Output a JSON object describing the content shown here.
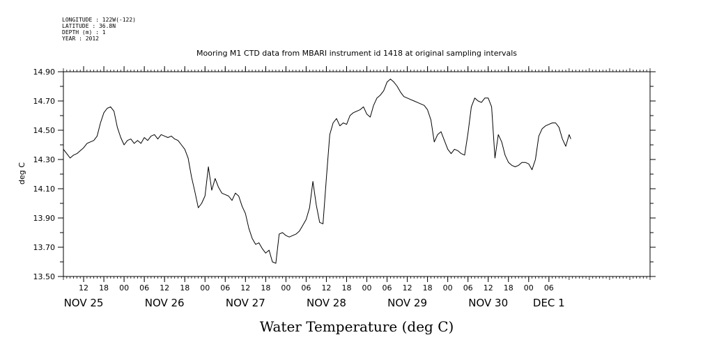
{
  "header": {
    "meta_lines": [
      "LONGITUDE : 122W(-122)",
      "LATITUDE : 36.8N",
      "DEPTH (m) : 1",
      "YEAR : 2012"
    ],
    "title": "Mooring M1 CTD data from MBARI instrument id 1418 at original sampling intervals"
  },
  "chart_data": {
    "type": "line",
    "title": "Mooring M1 CTD data from MBARI instrument id 1418 at original sampling intervals",
    "xlabel": "Water Temperature (deg C)",
    "ylabel": "deg C",
    "ylim": [
      13.5,
      14.9
    ],
    "xlim": [
      "2012-11-24 06:00",
      "2012-12-01 12:00"
    ],
    "y_ticks": [
      "13.50",
      "13.70",
      "13.90",
      "14.10",
      "14.30",
      "14.50",
      "14.70",
      "14.90"
    ],
    "x_hour_ticks": [
      {
        "t": "2012-11-24 12:00",
        "label": "12"
      },
      {
        "t": "2012-11-24 18:00",
        "label": "18"
      },
      {
        "t": "2012-11-25 00:00",
        "label": "00"
      },
      {
        "t": "2012-11-25 06:00",
        "label": "06"
      },
      {
        "t": "2012-11-25 12:00",
        "label": "12"
      },
      {
        "t": "2012-11-25 18:00",
        "label": "18"
      },
      {
        "t": "2012-11-26 00:00",
        "label": "00"
      },
      {
        "t": "2012-11-26 06:00",
        "label": "06"
      },
      {
        "t": "2012-11-26 12:00",
        "label": "12"
      },
      {
        "t": "2012-11-26 18:00",
        "label": "18"
      },
      {
        "t": "2012-11-27 00:00",
        "label": "00"
      },
      {
        "t": "2012-11-27 06:00",
        "label": "06"
      },
      {
        "t": "2012-11-27 12:00",
        "label": "12"
      },
      {
        "t": "2012-11-27 18:00",
        "label": "18"
      },
      {
        "t": "2012-11-28 00:00",
        "label": "00"
      },
      {
        "t": "2012-11-28 06:00",
        "label": "06"
      },
      {
        "t": "2012-11-28 12:00",
        "label": "12"
      },
      {
        "t": "2012-11-28 18:00",
        "label": "18"
      },
      {
        "t": "2012-11-29 00:00",
        "label": "00"
      },
      {
        "t": "2012-11-29 06:00",
        "label": "06"
      },
      {
        "t": "2012-11-29 12:00",
        "label": "12"
      },
      {
        "t": "2012-11-29 18:00",
        "label": "18"
      },
      {
        "t": "2012-11-30 00:00",
        "label": "00"
      },
      {
        "t": "2012-11-30 06:00",
        "label": "06"
      }
    ],
    "x_day_labels": [
      {
        "t": "2012-11-24 12:00",
        "label": "NOV 25"
      },
      {
        "t": "2012-11-25 12:00",
        "label": "NOV 26"
      },
      {
        "t": "2012-11-26 12:00",
        "label": "NOV 27"
      },
      {
        "t": "2012-11-27 12:00",
        "label": "NOV 28"
      },
      {
        "t": "2012-11-28 12:00",
        "label": "NOV 29"
      },
      {
        "t": "2012-11-29 12:00",
        "label": "NOV 30"
      },
      {
        "t": "2012-11-30 06:00",
        "label": "DEC  1"
      }
    ],
    "series": [
      {
        "color": "#000000",
        "points": [
          [
            "2012-11-24 06:00",
            14.37
          ],
          [
            "2012-11-24 07:00",
            14.34
          ],
          [
            "2012-11-24 08:00",
            14.31
          ],
          [
            "2012-11-24 09:00",
            14.33
          ],
          [
            "2012-11-24 10:00",
            14.34
          ],
          [
            "2012-11-24 11:00",
            14.36
          ],
          [
            "2012-11-24 12:00",
            14.38
          ],
          [
            "2012-11-24 13:00",
            14.41
          ],
          [
            "2012-11-24 14:00",
            14.42
          ],
          [
            "2012-11-24 15:00",
            14.43
          ],
          [
            "2012-11-24 16:00",
            14.46
          ],
          [
            "2012-11-24 17:00",
            14.55
          ],
          [
            "2012-11-24 18:00",
            14.62
          ],
          [
            "2012-11-24 19:00",
            14.65
          ],
          [
            "2012-11-24 20:00",
            14.66
          ],
          [
            "2012-11-24 21:00",
            14.63
          ],
          [
            "2012-11-24 22:00",
            14.52
          ],
          [
            "2012-11-24 23:00",
            14.45
          ],
          [
            "2012-11-25 00:00",
            14.4
          ],
          [
            "2012-11-25 01:00",
            14.43
          ],
          [
            "2012-11-25 02:00",
            14.44
          ],
          [
            "2012-11-25 03:00",
            14.41
          ],
          [
            "2012-11-25 04:00",
            14.43
          ],
          [
            "2012-11-25 05:00",
            14.41
          ],
          [
            "2012-11-25 06:00",
            14.45
          ],
          [
            "2012-11-25 07:00",
            14.43
          ],
          [
            "2012-11-25 08:00",
            14.46
          ],
          [
            "2012-11-25 09:00",
            14.47
          ],
          [
            "2012-11-25 10:00",
            14.44
          ],
          [
            "2012-11-25 11:00",
            14.47
          ],
          [
            "2012-11-25 12:00",
            14.46
          ],
          [
            "2012-11-25 13:00",
            14.45
          ],
          [
            "2012-11-25 14:00",
            14.46
          ],
          [
            "2012-11-25 15:00",
            14.44
          ],
          [
            "2012-11-25 16:00",
            14.43
          ],
          [
            "2012-11-25 17:00",
            14.4
          ],
          [
            "2012-11-25 18:00",
            14.37
          ],
          [
            "2012-11-25 19:00",
            14.31
          ],
          [
            "2012-11-25 20:00",
            14.18
          ],
          [
            "2012-11-25 21:00",
            14.08
          ],
          [
            "2012-11-25 22:00",
            13.97
          ],
          [
            "2012-11-25 23:00",
            14.0
          ],
          [
            "2012-11-26 00:00",
            14.05
          ],
          [
            "2012-11-26 01:00",
            14.25
          ],
          [
            "2012-11-26 02:00",
            14.09
          ],
          [
            "2012-11-26 03:00",
            14.17
          ],
          [
            "2012-11-26 04:00",
            14.11
          ],
          [
            "2012-11-26 05:00",
            14.07
          ],
          [
            "2012-11-26 06:00",
            14.06
          ],
          [
            "2012-11-26 07:00",
            14.05
          ],
          [
            "2012-11-26 08:00",
            14.02
          ],
          [
            "2012-11-26 09:00",
            14.07
          ],
          [
            "2012-11-26 10:00",
            14.05
          ],
          [
            "2012-11-26 11:00",
            13.98
          ],
          [
            "2012-11-26 12:00",
            13.93
          ],
          [
            "2012-11-26 13:00",
            13.83
          ],
          [
            "2012-11-26 14:00",
            13.76
          ],
          [
            "2012-11-26 15:00",
            13.72
          ],
          [
            "2012-11-26 16:00",
            13.73
          ],
          [
            "2012-11-26 17:00",
            13.69
          ],
          [
            "2012-11-26 18:00",
            13.66
          ],
          [
            "2012-11-26 19:00",
            13.68
          ],
          [
            "2012-11-26 20:00",
            13.6
          ],
          [
            "2012-11-26 21:00",
            13.59
          ],
          [
            "2012-11-26 22:00",
            13.79
          ],
          [
            "2012-11-26 23:00",
            13.8
          ],
          [
            "2012-11-27 00:00",
            13.78
          ],
          [
            "2012-11-27 01:00",
            13.77
          ],
          [
            "2012-11-27 02:00",
            13.78
          ],
          [
            "2012-11-27 03:00",
            13.79
          ],
          [
            "2012-11-27 04:00",
            13.81
          ],
          [
            "2012-11-27 05:00",
            13.85
          ],
          [
            "2012-11-27 06:00",
            13.89
          ],
          [
            "2012-11-27 07:00",
            13.97
          ],
          [
            "2012-11-27 08:00",
            14.15
          ],
          [
            "2012-11-27 09:00",
            13.99
          ],
          [
            "2012-11-27 10:00",
            13.87
          ],
          [
            "2012-11-27 11:00",
            13.86
          ],
          [
            "2012-11-27 12:00",
            14.17
          ],
          [
            "2012-11-27 13:00",
            14.47
          ],
          [
            "2012-11-27 14:00",
            14.55
          ],
          [
            "2012-11-27 15:00",
            14.58
          ],
          [
            "2012-11-27 16:00",
            14.53
          ],
          [
            "2012-11-27 17:00",
            14.55
          ],
          [
            "2012-11-27 18:00",
            14.54
          ],
          [
            "2012-11-27 19:00",
            14.6
          ],
          [
            "2012-11-27 20:00",
            14.62
          ],
          [
            "2012-11-27 21:00",
            14.63
          ],
          [
            "2012-11-27 22:00",
            14.64
          ],
          [
            "2012-11-27 23:00",
            14.66
          ],
          [
            "2012-11-28 00:00",
            14.61
          ],
          [
            "2012-11-28 01:00",
            14.59
          ],
          [
            "2012-11-28 02:00",
            14.67
          ],
          [
            "2012-11-28 03:00",
            14.72
          ],
          [
            "2012-11-28 04:00",
            14.74
          ],
          [
            "2012-11-28 05:00",
            14.77
          ],
          [
            "2012-11-28 06:00",
            14.83
          ],
          [
            "2012-11-28 07:00",
            14.85
          ],
          [
            "2012-11-28 08:00",
            14.83
          ],
          [
            "2012-11-28 09:00",
            14.8
          ],
          [
            "2012-11-28 10:00",
            14.76
          ],
          [
            "2012-11-28 11:00",
            14.73
          ],
          [
            "2012-11-28 12:00",
            14.72
          ],
          [
            "2012-11-28 13:00",
            14.71
          ],
          [
            "2012-11-28 14:00",
            14.7
          ],
          [
            "2012-11-28 15:00",
            14.69
          ],
          [
            "2012-11-28 16:00",
            14.68
          ],
          [
            "2012-11-28 17:00",
            14.67
          ],
          [
            "2012-11-28 18:00",
            14.64
          ],
          [
            "2012-11-28 19:00",
            14.57
          ],
          [
            "2012-11-28 20:00",
            14.42
          ],
          [
            "2012-11-28 21:00",
            14.47
          ],
          [
            "2012-11-28 22:00",
            14.49
          ],
          [
            "2012-11-28 23:00",
            14.43
          ],
          [
            "2012-11-29 00:00",
            14.37
          ],
          [
            "2012-11-29 01:00",
            14.34
          ],
          [
            "2012-11-29 02:00",
            14.37
          ],
          [
            "2012-11-29 03:00",
            14.36
          ],
          [
            "2012-11-29 04:00",
            14.34
          ],
          [
            "2012-11-29 05:00",
            14.33
          ],
          [
            "2012-11-29 06:00",
            14.48
          ],
          [
            "2012-11-29 07:00",
            14.66
          ],
          [
            "2012-11-29 08:00",
            14.72
          ],
          [
            "2012-11-29 09:00",
            14.7
          ],
          [
            "2012-11-29 10:00",
            14.69
          ],
          [
            "2012-11-29 11:00",
            14.72
          ],
          [
            "2012-11-29 12:00",
            14.72
          ],
          [
            "2012-11-29 13:00",
            14.66
          ],
          [
            "2012-11-29 14:00",
            14.31
          ],
          [
            "2012-11-29 15:00",
            14.47
          ],
          [
            "2012-11-29 16:00",
            14.42
          ],
          [
            "2012-11-29 17:00",
            14.33
          ],
          [
            "2012-11-29 18:00",
            14.28
          ],
          [
            "2012-11-29 19:00",
            14.26
          ],
          [
            "2012-11-29 20:00",
            14.25
          ],
          [
            "2012-11-29 21:00",
            14.26
          ],
          [
            "2012-11-29 22:00",
            14.28
          ],
          [
            "2012-11-29 23:00",
            14.28
          ],
          [
            "2012-11-30 00:00",
            14.27
          ],
          [
            "2012-11-30 01:00",
            14.23
          ],
          [
            "2012-11-30 02:00",
            14.3
          ],
          [
            "2012-11-30 03:00",
            14.46
          ],
          [
            "2012-11-30 04:00",
            14.51
          ],
          [
            "2012-11-30 05:00",
            14.53
          ],
          [
            "2012-11-30 06:00",
            14.54
          ],
          [
            "2012-11-30 07:00",
            14.55
          ],
          [
            "2012-11-30 08:00",
            14.55
          ],
          [
            "2012-11-30 09:00",
            14.52
          ],
          [
            "2012-11-30 10:00",
            14.44
          ],
          [
            "2012-11-30 11:00",
            14.39
          ],
          [
            "2012-11-30 12:00",
            14.47
          ],
          [
            "2012-11-30 12:30",
            14.44
          ]
        ]
      }
    ]
  }
}
